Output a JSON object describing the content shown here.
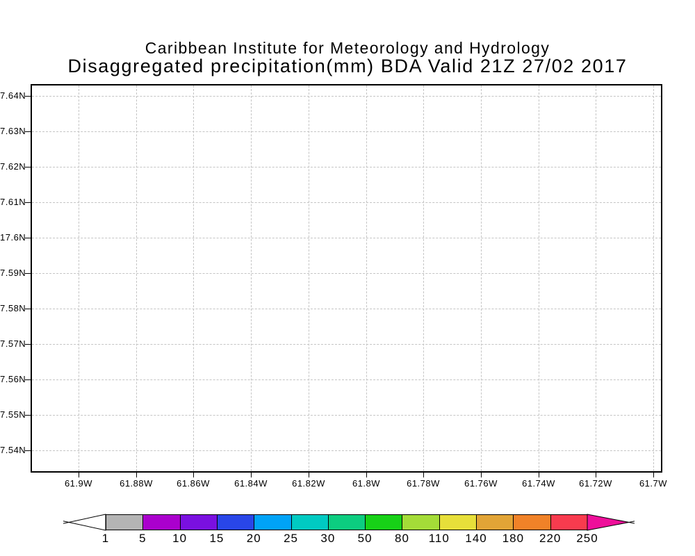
{
  "header": {
    "institution": "Caribbean Institute for Meteorology and Hydrology",
    "plot_title": "Disaggregated precipitation(mm) BDA Valid 21Z 27/02 2017"
  },
  "map": {
    "y_axis_labels": [
      "7.64N",
      "7.63N",
      "7.62N",
      "7.61N",
      "17.6N",
      "7.59N",
      "7.58N",
      "7.57N",
      "7.56N",
      "7.55N",
      "7.54N"
    ],
    "x_axis_labels": [
      "61.9W",
      "61.88W",
      "61.86W",
      "61.84W",
      "61.82W",
      "61.8W",
      "61.78W",
      "61.76W",
      "61.74W",
      "61.72W",
      "61.7W"
    ]
  },
  "colorbar": {
    "tick_labels": [
      "1",
      "5",
      "10",
      "15",
      "20",
      "25",
      "30",
      "50",
      "80",
      "110",
      "140",
      "180",
      "220",
      "250"
    ],
    "segment_colors": [
      "#b4b4b4",
      "#aa00cd",
      "#7a10e0",
      "#2946e8",
      "#00a3f7",
      "#00cac2",
      "#0ccd80",
      "#17d117",
      "#a4dc38",
      "#e7df3a",
      "#e2a436",
      "#f08228",
      "#f83b4e"
    ],
    "below_min_color": "#ffffff",
    "above_max_color": "#ee0f9a",
    "outline_color": "#000000"
  },
  "chart_data": {
    "type": "heatmap",
    "title": "Disaggregated precipitation(mm) BDA Valid 21Z 27/02 2017",
    "subtitle": "Caribbean Institute for Meteorology and Hydrology",
    "x_tick_labels": [
      "61.9W",
      "61.88W",
      "61.86W",
      "61.84W",
      "61.82W",
      "61.8W",
      "61.78W",
      "61.76W",
      "61.74W",
      "61.72W",
      "61.7W"
    ],
    "y_tick_labels": [
      "7.64N",
      "7.63N",
      "7.62N",
      "7.61N",
      "17.6N",
      "7.59N",
      "7.58N",
      "7.57N",
      "7.56N",
      "7.55N",
      "7.54N"
    ],
    "colorbar_levels": [
      1,
      5,
      10,
      15,
      20,
      25,
      30,
      50,
      80,
      110,
      140,
      180,
      220,
      250
    ],
    "grid": true,
    "legend_position": "bottom",
    "values": []
  }
}
